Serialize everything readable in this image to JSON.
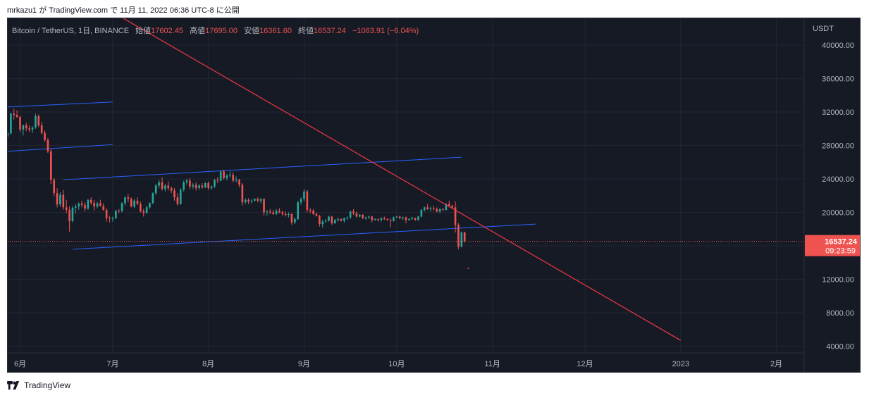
{
  "header": {
    "published": "mrkazu1 が TradingView.com で 11月 11, 2022 06:36 UTC-8 に公開"
  },
  "legend": {
    "symbol": "Bitcoin / TetherUS, 1日, BINANCE",
    "open_label": "始値",
    "open": "17602.45",
    "high_label": "高値",
    "high": "17695.00",
    "low_label": "安値",
    "low": "16361.60",
    "close_label": "終値",
    "close": "16537.24",
    "change": "−1063.91 (−6.04%)"
  },
  "price_box": {
    "price": "16537.24",
    "countdown": "09:23:59"
  },
  "footer": {
    "brand": "TradingView"
  },
  "colors": {
    "up": "#26a69a",
    "down": "#ef5350",
    "trendline": "#f23645",
    "channel": "#2962ff",
    "background": "#161a25"
  },
  "chart_data": {
    "type": "candlestick",
    "currency": "USDT",
    "y_ticks": [
      4000,
      8000,
      12000,
      16000,
      20000,
      24000,
      28000,
      32000,
      36000,
      40000
    ],
    "y_tick_labels": [
      "4000.00",
      "8000.00",
      "12000.00",
      "16000.00",
      "20000.00",
      "24000.00",
      "28000.00",
      "32000.00",
      "36000.00",
      "40000.00"
    ],
    "ylim": [
      3200,
      43200
    ],
    "x_ticks": [
      {
        "label": "6月",
        "date": "2022-06-01"
      },
      {
        "label": "7月",
        "date": "2022-07-01"
      },
      {
        "label": "8月",
        "date": "2022-08-01"
      },
      {
        "label": "9月",
        "date": "2022-09-01"
      },
      {
        "label": "10月",
        "date": "2022-10-01"
      },
      {
        "label": "11月",
        "date": "2022-11-01"
      },
      {
        "label": "12月",
        "date": "2022-12-01"
      },
      {
        "label": "2023",
        "date": "2023-01-01"
      },
      {
        "label": "2月",
        "date": "2023-02-01"
      }
    ],
    "xlim": [
      "2022-05-28",
      "2023-02-10"
    ],
    "first_date": "2022-05-28",
    "candles": [
      [
        29200,
        29600,
        28900,
        29450
      ],
      [
        29450,
        31900,
        29300,
        31800
      ],
      [
        31800,
        32400,
        31100,
        31650
      ],
      [
        31650,
        32200,
        31300,
        31400
      ],
      [
        31400,
        31600,
        29600,
        29900
      ],
      [
        29900,
        30500,
        29200,
        30400
      ],
      [
        30400,
        30700,
        29700,
        30050
      ],
      [
        30050,
        30400,
        29600,
        29900
      ],
      [
        29900,
        30300,
        29500,
        30150
      ],
      [
        30150,
        31800,
        30000,
        31500
      ],
      [
        31500,
        31700,
        30200,
        30400
      ],
      [
        30400,
        30800,
        29300,
        29500
      ],
      [
        29500,
        29800,
        28400,
        28650
      ],
      [
        28650,
        28900,
        27100,
        27300
      ],
      [
        27300,
        27600,
        23400,
        23900
      ],
      [
        23900,
        24100,
        21900,
        22300
      ],
      [
        22300,
        22900,
        20600,
        20950
      ],
      [
        20950,
        22400,
        20700,
        22100
      ],
      [
        22100,
        22700,
        20300,
        20600
      ],
      [
        20600,
        21500,
        19900,
        20300
      ],
      [
        20300,
        20700,
        17700,
        18950
      ],
      [
        18950,
        20800,
        18800,
        20550
      ],
      [
        20550,
        21000,
        19900,
        20700
      ],
      [
        20700,
        21200,
        20300,
        21050
      ],
      [
        21050,
        21400,
        20600,
        20900
      ],
      [
        20900,
        21200,
        20100,
        20450
      ],
      [
        20450,
        21600,
        20300,
        21500
      ],
      [
        21500,
        21800,
        20900,
        21150
      ],
      [
        21150,
        21500,
        20200,
        20700
      ],
      [
        20700,
        21300,
        20500,
        21100
      ],
      [
        21100,
        21500,
        20700,
        20750
      ],
      [
        20750,
        21100,
        20200,
        20300
      ],
      [
        20300,
        20500,
        18900,
        19300
      ],
      [
        19300,
        19600,
        18800,
        19250
      ],
      [
        19250,
        19500,
        18900,
        19300
      ],
      [
        19300,
        20300,
        19200,
        20200
      ],
      [
        20200,
        20400,
        19900,
        20150
      ],
      [
        20150,
        21200,
        20000,
        21100
      ],
      [
        21100,
        21900,
        20800,
        21800
      ],
      [
        21800,
        22200,
        21200,
        21600
      ],
      [
        21600,
        21800,
        20600,
        20700
      ],
      [
        20700,
        21600,
        20500,
        21400
      ],
      [
        21400,
        21800,
        20900,
        21000
      ],
      [
        21000,
        21300,
        20000,
        20100
      ],
      [
        20100,
        20400,
        19500,
        19950
      ],
      [
        19950,
        20800,
        19800,
        20600
      ],
      [
        20600,
        21200,
        20400,
        21100
      ],
      [
        21100,
        22400,
        21000,
        22300
      ],
      [
        22300,
        23400,
        22100,
        23200
      ],
      [
        23200,
        23900,
        22900,
        23600
      ],
      [
        23600,
        24200,
        22600,
        22800
      ],
      [
        22800,
        23400,
        22500,
        23200
      ],
      [
        23200,
        23700,
        22600,
        22900
      ],
      [
        22900,
        23100,
        22300,
        22600
      ],
      [
        22600,
        22900,
        21400,
        21800
      ],
      [
        21800,
        22300,
        20800,
        21000
      ],
      [
        21000,
        22900,
        20900,
        22700
      ],
      [
        22700,
        23800,
        22500,
        23600
      ],
      [
        23600,
        24000,
        23300,
        23800
      ],
      [
        23800,
        24100,
        22800,
        23100
      ],
      [
        23100,
        23500,
        22800,
        23300
      ],
      [
        23300,
        23600,
        22600,
        22900
      ],
      [
        22900,
        23400,
        22700,
        23200
      ],
      [
        23200,
        23500,
        22800,
        23000
      ],
      [
        23000,
        23600,
        22900,
        23500
      ],
      [
        23500,
        23700,
        22700,
        22900
      ],
      [
        22900,
        23200,
        22700,
        23100
      ],
      [
        23100,
        24000,
        22900,
        23900
      ],
      [
        23900,
        24200,
        23500,
        23800
      ],
      [
        23800,
        25000,
        23700,
        24900
      ],
      [
        24900,
        25100,
        23900,
        24100
      ],
      [
        24100,
        24600,
        23800,
        24400
      ],
      [
        24400,
        24900,
        24200,
        24500
      ],
      [
        24500,
        24800,
        23600,
        23800
      ],
      [
        23800,
        24300,
        23600,
        23900
      ],
      [
        23900,
        24000,
        23000,
        23300
      ],
      [
        23300,
        23500,
        20800,
        21200
      ],
      [
        21200,
        21700,
        21000,
        21500
      ],
      [
        21500,
        21700,
        21000,
        21300
      ],
      [
        21300,
        21600,
        21100,
        21400
      ],
      [
        21400,
        21700,
        21300,
        21600
      ],
      [
        21600,
        21800,
        21200,
        21400
      ],
      [
        21400,
        21700,
        21100,
        21600
      ],
      [
        21600,
        21700,
        19600,
        20000
      ],
      [
        20000,
        20300,
        19600,
        20100
      ],
      [
        20100,
        20400,
        19800,
        20000
      ],
      [
        20000,
        20300,
        19700,
        19800
      ],
      [
        19800,
        20400,
        19700,
        20200
      ],
      [
        20200,
        20500,
        19900,
        20000
      ],
      [
        20000,
        20200,
        19600,
        19800
      ],
      [
        19800,
        20100,
        19500,
        19700
      ],
      [
        19700,
        20000,
        19400,
        19800
      ],
      [
        19800,
        19900,
        18500,
        18800
      ],
      [
        18800,
        19400,
        18600,
        19200
      ],
      [
        19200,
        21400,
        19100,
        21200
      ],
      [
        21200,
        21800,
        20900,
        21600
      ],
      [
        21600,
        22800,
        21300,
        22500
      ],
      [
        22500,
        22700,
        20000,
        20300
      ],
      [
        20300,
        20500,
        19900,
        20200
      ],
      [
        20200,
        20400,
        19700,
        19800
      ],
      [
        19800,
        20000,
        19500,
        19600
      ],
      [
        19600,
        19700,
        18300,
        18600
      ],
      [
        18600,
        19100,
        18200,
        18900
      ],
      [
        18900,
        19200,
        18800,
        19000
      ],
      [
        19000,
        19600,
        18900,
        19500
      ],
      [
        19500,
        19600,
        18500,
        18700
      ],
      [
        18700,
        19200,
        18600,
        19100
      ],
      [
        19100,
        19400,
        18900,
        19200
      ],
      [
        19200,
        19300,
        18900,
        19000
      ],
      [
        19000,
        19400,
        18800,
        19300
      ],
      [
        19300,
        19500,
        19100,
        19400
      ],
      [
        19400,
        20200,
        19200,
        20100
      ],
      [
        20100,
        20400,
        19700,
        19900
      ],
      [
        19900,
        20100,
        19400,
        19500
      ],
      [
        19500,
        19800,
        19400,
        19700
      ],
      [
        19700,
        19800,
        19200,
        19300
      ],
      [
        19300,
        19500,
        19100,
        19400
      ],
      [
        19400,
        19600,
        19200,
        19500
      ],
      [
        19500,
        19600,
        18800,
        19100
      ],
      [
        19100,
        19300,
        19000,
        19200
      ],
      [
        19200,
        19300,
        18900,
        19100
      ],
      [
        19100,
        19400,
        18900,
        19300
      ],
      [
        19300,
        19500,
        19100,
        19200
      ],
      [
        19200,
        19300,
        19000,
        19100
      ],
      [
        19100,
        19300,
        18200,
        19000
      ],
      [
        19000,
        19500,
        18900,
        19400
      ],
      [
        19400,
        19600,
        19300,
        19500
      ],
      [
        19500,
        19600,
        19200,
        19300
      ],
      [
        19300,
        19500,
        19100,
        19400
      ],
      [
        19400,
        19500,
        18700,
        19100
      ],
      [
        19100,
        19300,
        19000,
        19200
      ],
      [
        19200,
        19500,
        19100,
        19300
      ],
      [
        19300,
        19400,
        19000,
        19100
      ],
      [
        19100,
        19600,
        19000,
        19500
      ],
      [
        19500,
        20400,
        19400,
        20300
      ],
      [
        20300,
        20700,
        20100,
        20600
      ],
      [
        20600,
        21000,
        20300,
        20400
      ],
      [
        20400,
        20700,
        20100,
        20500
      ],
      [
        20500,
        20800,
        20200,
        20400
      ],
      [
        20400,
        20600,
        20000,
        20100
      ],
      [
        20100,
        20500,
        19900,
        20400
      ],
      [
        20400,
        20500,
        20200,
        20300
      ],
      [
        20300,
        21100,
        20200,
        21000
      ],
      [
        21000,
        21400,
        20600,
        20800
      ],
      [
        20800,
        20900,
        20400,
        20600
      ],
      [
        20600,
        21300,
        17600,
        18500
      ],
      [
        18500,
        18700,
        15600,
        15900
      ],
      [
        15900,
        17700,
        15800,
        17600
      ],
      [
        17600,
        17700,
        16360,
        16540
      ]
    ],
    "trendline": {
      "from": {
        "date": "2022-06-26",
        "price": 45000
      },
      "to": {
        "date": "2023-01-01",
        "price": 4700
      }
    },
    "channels": [
      {
        "from": {
          "date": "2022-05-28",
          "price": 32600
        },
        "to": {
          "date": "2022-07-01",
          "price": 33200
        }
      },
      {
        "from": {
          "date": "2022-05-28",
          "price": 27300
        },
        "to": {
          "date": "2022-07-01",
          "price": 28100
        }
      },
      {
        "from": {
          "date": "2022-06-15",
          "price": 23900
        },
        "to": {
          "date": "2022-10-22",
          "price": 26600
        }
      },
      {
        "from": {
          "date": "2022-06-18",
          "price": 15600
        },
        "to": {
          "date": "2022-11-15",
          "price": 18600
        }
      }
    ],
    "last_price": 16537.24,
    "marker": {
      "date": "2022-10-24",
      "price": 13400
    }
  }
}
